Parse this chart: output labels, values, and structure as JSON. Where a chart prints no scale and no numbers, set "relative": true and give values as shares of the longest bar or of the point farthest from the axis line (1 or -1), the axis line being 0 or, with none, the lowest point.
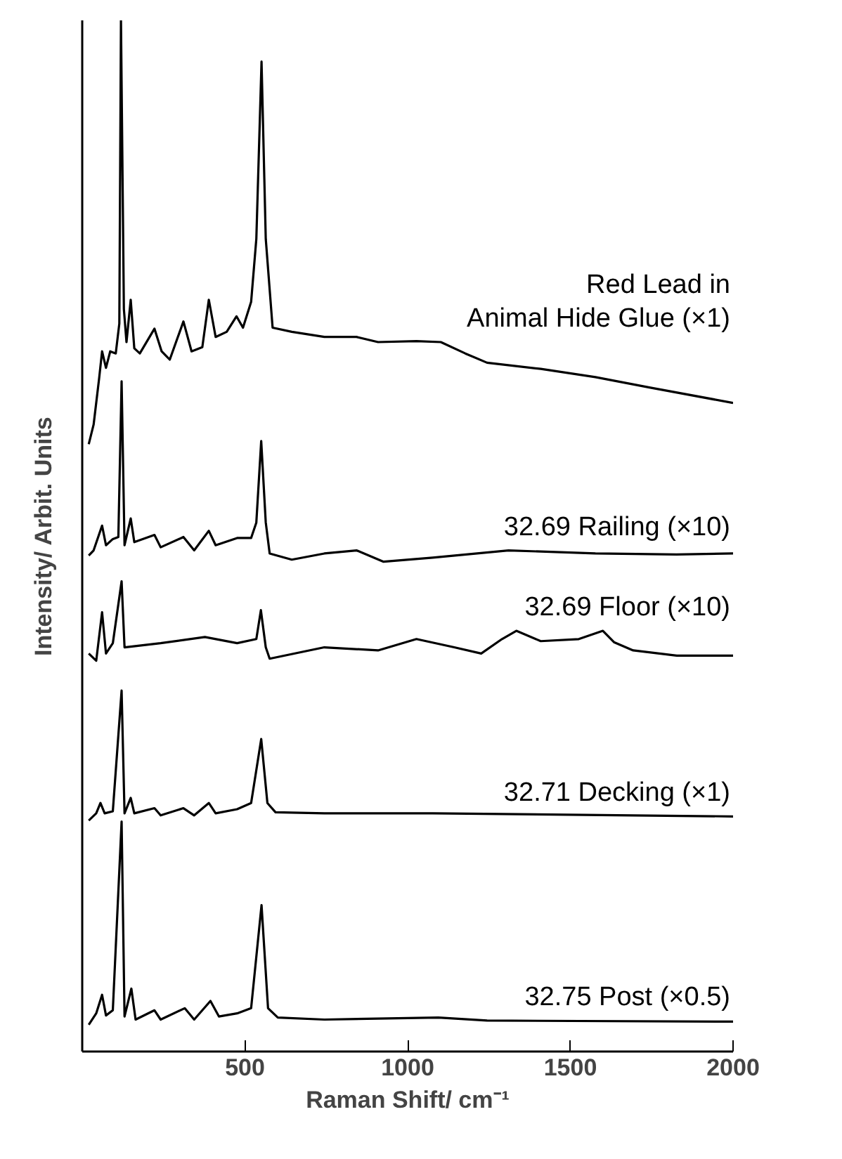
{
  "chart_data": {
    "type": "line",
    "relative": true,
    "xlabel": "Raman Shift/ cm⁻¹",
    "ylabel": "Intensity/ Arbit. Units",
    "xlim": [
      0,
      2000
    ],
    "xticks": [
      500,
      1000,
      1500,
      2000
    ],
    "line_style": "solid",
    "series": [
      {
        "name": "Red Lead in\nAnimal Hide Glue (×1)",
        "color": "#000000",
        "x": [
          20,
          35,
          52,
          61,
          73,
          86,
          103,
          114,
          119,
          128,
          136,
          149,
          160,
          177,
          222,
          244,
          269,
          311,
          336,
          369,
          389,
          410,
          444,
          474,
          494,
          519,
          535,
          551,
          564,
          585,
          644,
          744,
          843,
          909,
          1027,
          1102,
          1177,
          1244,
          1409,
          1577,
          1743,
          2000
        ],
        "values": [
          0.589,
          0.608,
          0.653,
          0.679,
          0.663,
          0.679,
          0.677,
          0.706,
          1.0,
          0.72,
          0.688,
          0.729,
          0.682,
          0.677,
          0.701,
          0.679,
          0.671,
          0.708,
          0.679,
          0.683,
          0.729,
          0.693,
          0.698,
          0.713,
          0.702,
          0.727,
          0.788,
          0.96,
          0.788,
          0.702,
          0.698,
          0.693,
          0.693,
          0.688,
          0.689,
          0.688,
          0.677,
          0.668,
          0.662,
          0.654,
          0.644,
          0.629
        ]
      },
      {
        "name": "32.69 Railing (×10)",
        "color": "#000000",
        "x": [
          20,
          35,
          61,
          73,
          94,
          111,
          121,
          130,
          149,
          160,
          222,
          241,
          311,
          344,
          389,
          410,
          476,
          519,
          535,
          550,
          564,
          576,
          644,
          744,
          843,
          926,
          1077,
          1310,
          1577,
          1826,
          2000
        ],
        "values": [
          0.481,
          0.486,
          0.51,
          0.491,
          0.497,
          0.499,
          0.65,
          0.491,
          0.517,
          0.494,
          0.501,
          0.489,
          0.499,
          0.486,
          0.505,
          0.491,
          0.498,
          0.498,
          0.513,
          0.592,
          0.513,
          0.483,
          0.477,
          0.483,
          0.486,
          0.475,
          0.479,
          0.486,
          0.483,
          0.482,
          0.483
        ]
      },
      {
        "name": "32.69 Floor (×10)",
        "color": "#000000",
        "x": [
          20,
          43,
          61,
          73,
          94,
          121,
          130,
          241,
          377,
          476,
          535,
          549,
          564,
          576,
          744,
          909,
          1027,
          1143,
          1226,
          1290,
          1334,
          1409,
          1526,
          1600,
          1634,
          1693,
          1827,
          2000
        ],
        "values": [
          0.386,
          0.379,
          0.426,
          0.386,
          0.396,
          0.456,
          0.392,
          0.396,
          0.402,
          0.396,
          0.4,
          0.428,
          0.392,
          0.381,
          0.392,
          0.389,
          0.4,
          0.392,
          0.386,
          0.4,
          0.408,
          0.398,
          0.4,
          0.408,
          0.397,
          0.389,
          0.384,
          0.384
        ]
      },
      {
        "name": "32.71 Decking (×1)",
        "color": "#000000",
        "x": [
          20,
          43,
          56,
          69,
          94,
          121,
          130,
          149,
          160,
          222,
          241,
          311,
          344,
          389,
          410,
          476,
          519,
          550,
          569,
          594,
          744,
          1077,
          2000
        ],
        "values": [
          0.224,
          0.231,
          0.241,
          0.231,
          0.233,
          0.35,
          0.231,
          0.246,
          0.231,
          0.236,
          0.229,
          0.236,
          0.229,
          0.241,
          0.231,
          0.235,
          0.241,
          0.303,
          0.241,
          0.232,
          0.231,
          0.231,
          0.228
        ]
      },
      {
        "name": "32.75 Post (×0.5)",
        "color": "#000000",
        "x": [
          20,
          43,
          61,
          73,
          94,
          121,
          130,
          151,
          164,
          222,
          241,
          315,
          344,
          394,
          420,
          476,
          519,
          551,
          571,
          601,
          744,
          1094,
          1244,
          2000
        ],
        "values": [
          0.026,
          0.037,
          0.055,
          0.035,
          0.04,
          0.223,
          0.034,
          0.061,
          0.031,
          0.04,
          0.031,
          0.042,
          0.031,
          0.049,
          0.034,
          0.037,
          0.042,
          0.142,
          0.042,
          0.033,
          0.031,
          0.033,
          0.03,
          0.029
        ]
      }
    ]
  }
}
